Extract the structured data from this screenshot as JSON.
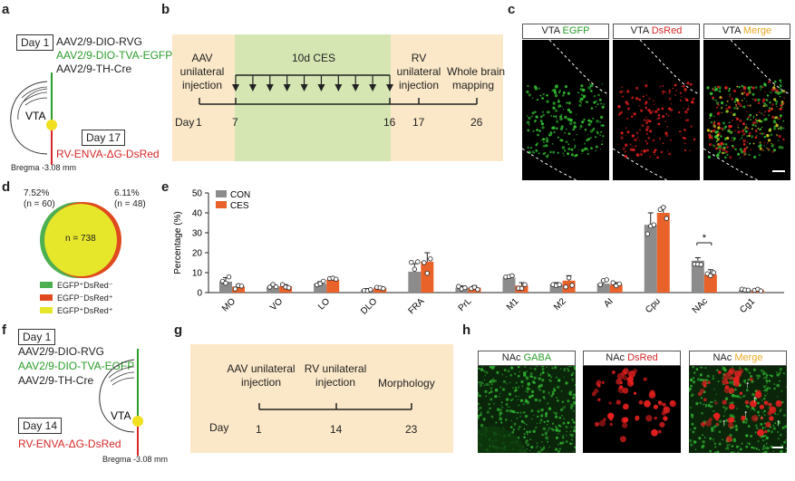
{
  "panels": {
    "a": {
      "label": "a",
      "day1": "Day 1",
      "virus1": "AAV2/9-DIO-RVG",
      "virus2": "AAV2/9-DIO-TVA-EGFP",
      "virus3": "AAV2/9-TH-Cre",
      "region": "VTA",
      "day2": "Day 17",
      "virus4": "RV-ENVA-ΔG-DsRed",
      "bregma": "Bregma -3.08 mm"
    },
    "b": {
      "label": "b",
      "aav": [
        "AAV",
        "unilateral",
        "injection"
      ],
      "ces": "10d CES",
      "rv": [
        "RV",
        "unilateral",
        "injection"
      ],
      "mapping": [
        "Whole brain",
        "mapping"
      ],
      "day_label": "Day",
      "days": [
        "1",
        "7",
        "16",
        "17",
        "26"
      ],
      "colors": {
        "aav_bg": "#fbe8c8",
        "ces_bg": "#d5e6b3"
      }
    },
    "c": {
      "label": "c",
      "titles": [
        {
          "region": "VTA",
          "stain": "EGFP",
          "color": "#2a9d2a"
        },
        {
          "region": "VTA",
          "stain": "DsRed",
          "color": "#d62828"
        },
        {
          "region": "VTA",
          "stain": "Merge",
          "color": "#e9a825"
        }
      ]
    },
    "d": {
      "label": "d",
      "left_pct": "7.52%",
      "left_n": "(n = 60)",
      "right_pct": "6.11%",
      "right_n": "(n = 48)",
      "center_n": "n = 738",
      "legend": [
        {
          "text": "EGFP⁺DsRed⁻",
          "color": "#4caf50"
        },
        {
          "text": "EGFP⁻DsRed⁺",
          "color": "#e04a1f"
        },
        {
          "text": "EGFP⁺DsRed⁺",
          "color": "#e6e62a"
        }
      ]
    },
    "e": {
      "label": "e"
    },
    "f": {
      "label": "f",
      "day1": "Day 1",
      "virus1": "AAV2/9-DIO-RVG",
      "virus2": "AAV2/9-DIO-TVA-EGFP",
      "virus3": "AAV2/9-TH-Cre",
      "region": "VTA",
      "day2": "Day 14",
      "virus4": "RV-ENVA-ΔG-DsRed",
      "bregma": "Bregma -3.08 mm"
    },
    "g": {
      "label": "g",
      "aav": [
        "AAV unilateral",
        "injection"
      ],
      "rv": [
        "RV unilateral",
        "injection"
      ],
      "morph": "Morphology",
      "day_label": "Day",
      "days": [
        "1",
        "14",
        "23"
      ]
    },
    "h": {
      "label": "h",
      "titles": [
        {
          "region": "NAc",
          "stain": "GABA",
          "color": "#2a9d2a"
        },
        {
          "region": "NAc",
          "stain": "DsRed",
          "color": "#d62828"
        },
        {
          "region": "NAc",
          "stain": "Merge",
          "color": "#e9a825"
        }
      ]
    }
  },
  "chart_data": {
    "type": "bar",
    "categories": [
      "MO",
      "VO",
      "LO",
      "DLO",
      "FRA",
      "PrL",
      "M1",
      "M2",
      "AI",
      "Cpu",
      "NAc",
      "Cg1"
    ],
    "series": [
      {
        "name": "CON",
        "color": "#8c8c8c",
        "values": [
          5.5,
          3.0,
          4.5,
          1.5,
          10.5,
          2.5,
          7.5,
          4.0,
          4.5,
          34,
          16,
          1.2
        ],
        "errors": [
          2.0,
          1.0,
          1.0,
          0.5,
          4.0,
          0.8,
          0.8,
          1.0,
          1.5,
          6.0,
          1.5,
          0.5
        ]
      },
      {
        "name": "CES",
        "color": "#e8622a",
        "values": [
          3.0,
          3.2,
          6.5,
          2.5,
          15.5,
          2.5,
          3.5,
          6.0,
          4.0,
          40,
          9,
          1.2
        ],
        "errors": [
          1.0,
          0.8,
          0.8,
          0.5,
          4.5,
          1.0,
          1.5,
          2.5,
          1.0,
          3.0,
          2.5,
          0.4
        ]
      }
    ],
    "ylabel": "Percentage (%)",
    "ylim": [
      0,
      50
    ],
    "yticks": [
      0,
      10,
      20,
      30,
      40,
      50
    ],
    "significance": {
      "category": "NAc",
      "text": "*"
    }
  }
}
